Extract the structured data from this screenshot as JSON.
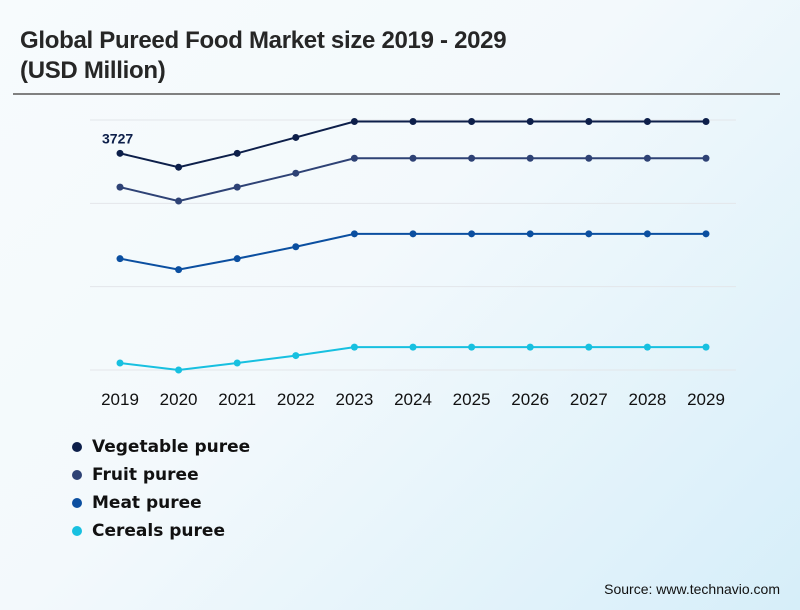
{
  "title_line1": "Global Pureed Food Market size 2019 - 2029",
  "title_line2": "(USD Million)",
  "source": "Source: www.technavio.com",
  "chart_data": {
    "type": "line",
    "title": "Global Pureed Food Market size 2019 - 2029 (USD Million)",
    "xlabel": "",
    "ylabel": "",
    "x": [
      "2019",
      "2020",
      "2021",
      "2022",
      "2023",
      "2024",
      "2025",
      "2026",
      "2027",
      "2028",
      "2029"
    ],
    "ylim": [
      0,
      4300
    ],
    "grid": true,
    "legend_position": "bottom-left",
    "annotations": [
      {
        "series": "Vegetable puree",
        "x": "2019",
        "label": "3727"
      }
    ],
    "series": [
      {
        "name": "Vegetable puree",
        "color": "#0d1f4a",
        "values": [
          3727,
          3488,
          3727,
          4000,
          4274,
          4274,
          4274,
          4274,
          4274,
          4274,
          4274
        ]
      },
      {
        "name": "Fruit puree",
        "color": "#2e4275",
        "values": [
          3146,
          2906,
          3146,
          3385,
          3642,
          3642,
          3642,
          3642,
          3642,
          3642,
          3642
        ]
      },
      {
        "name": "Meat puree",
        "color": "#0b4fa0",
        "values": [
          1915,
          1727,
          1915,
          2120,
          2342,
          2342,
          2342,
          2342,
          2342,
          2342,
          2342
        ]
      },
      {
        "name": "Cereals puree",
        "color": "#17c0e0",
        "values": [
          120,
          0,
          120,
          248,
          393,
          393,
          393,
          393,
          393,
          393,
          393
        ]
      }
    ]
  }
}
